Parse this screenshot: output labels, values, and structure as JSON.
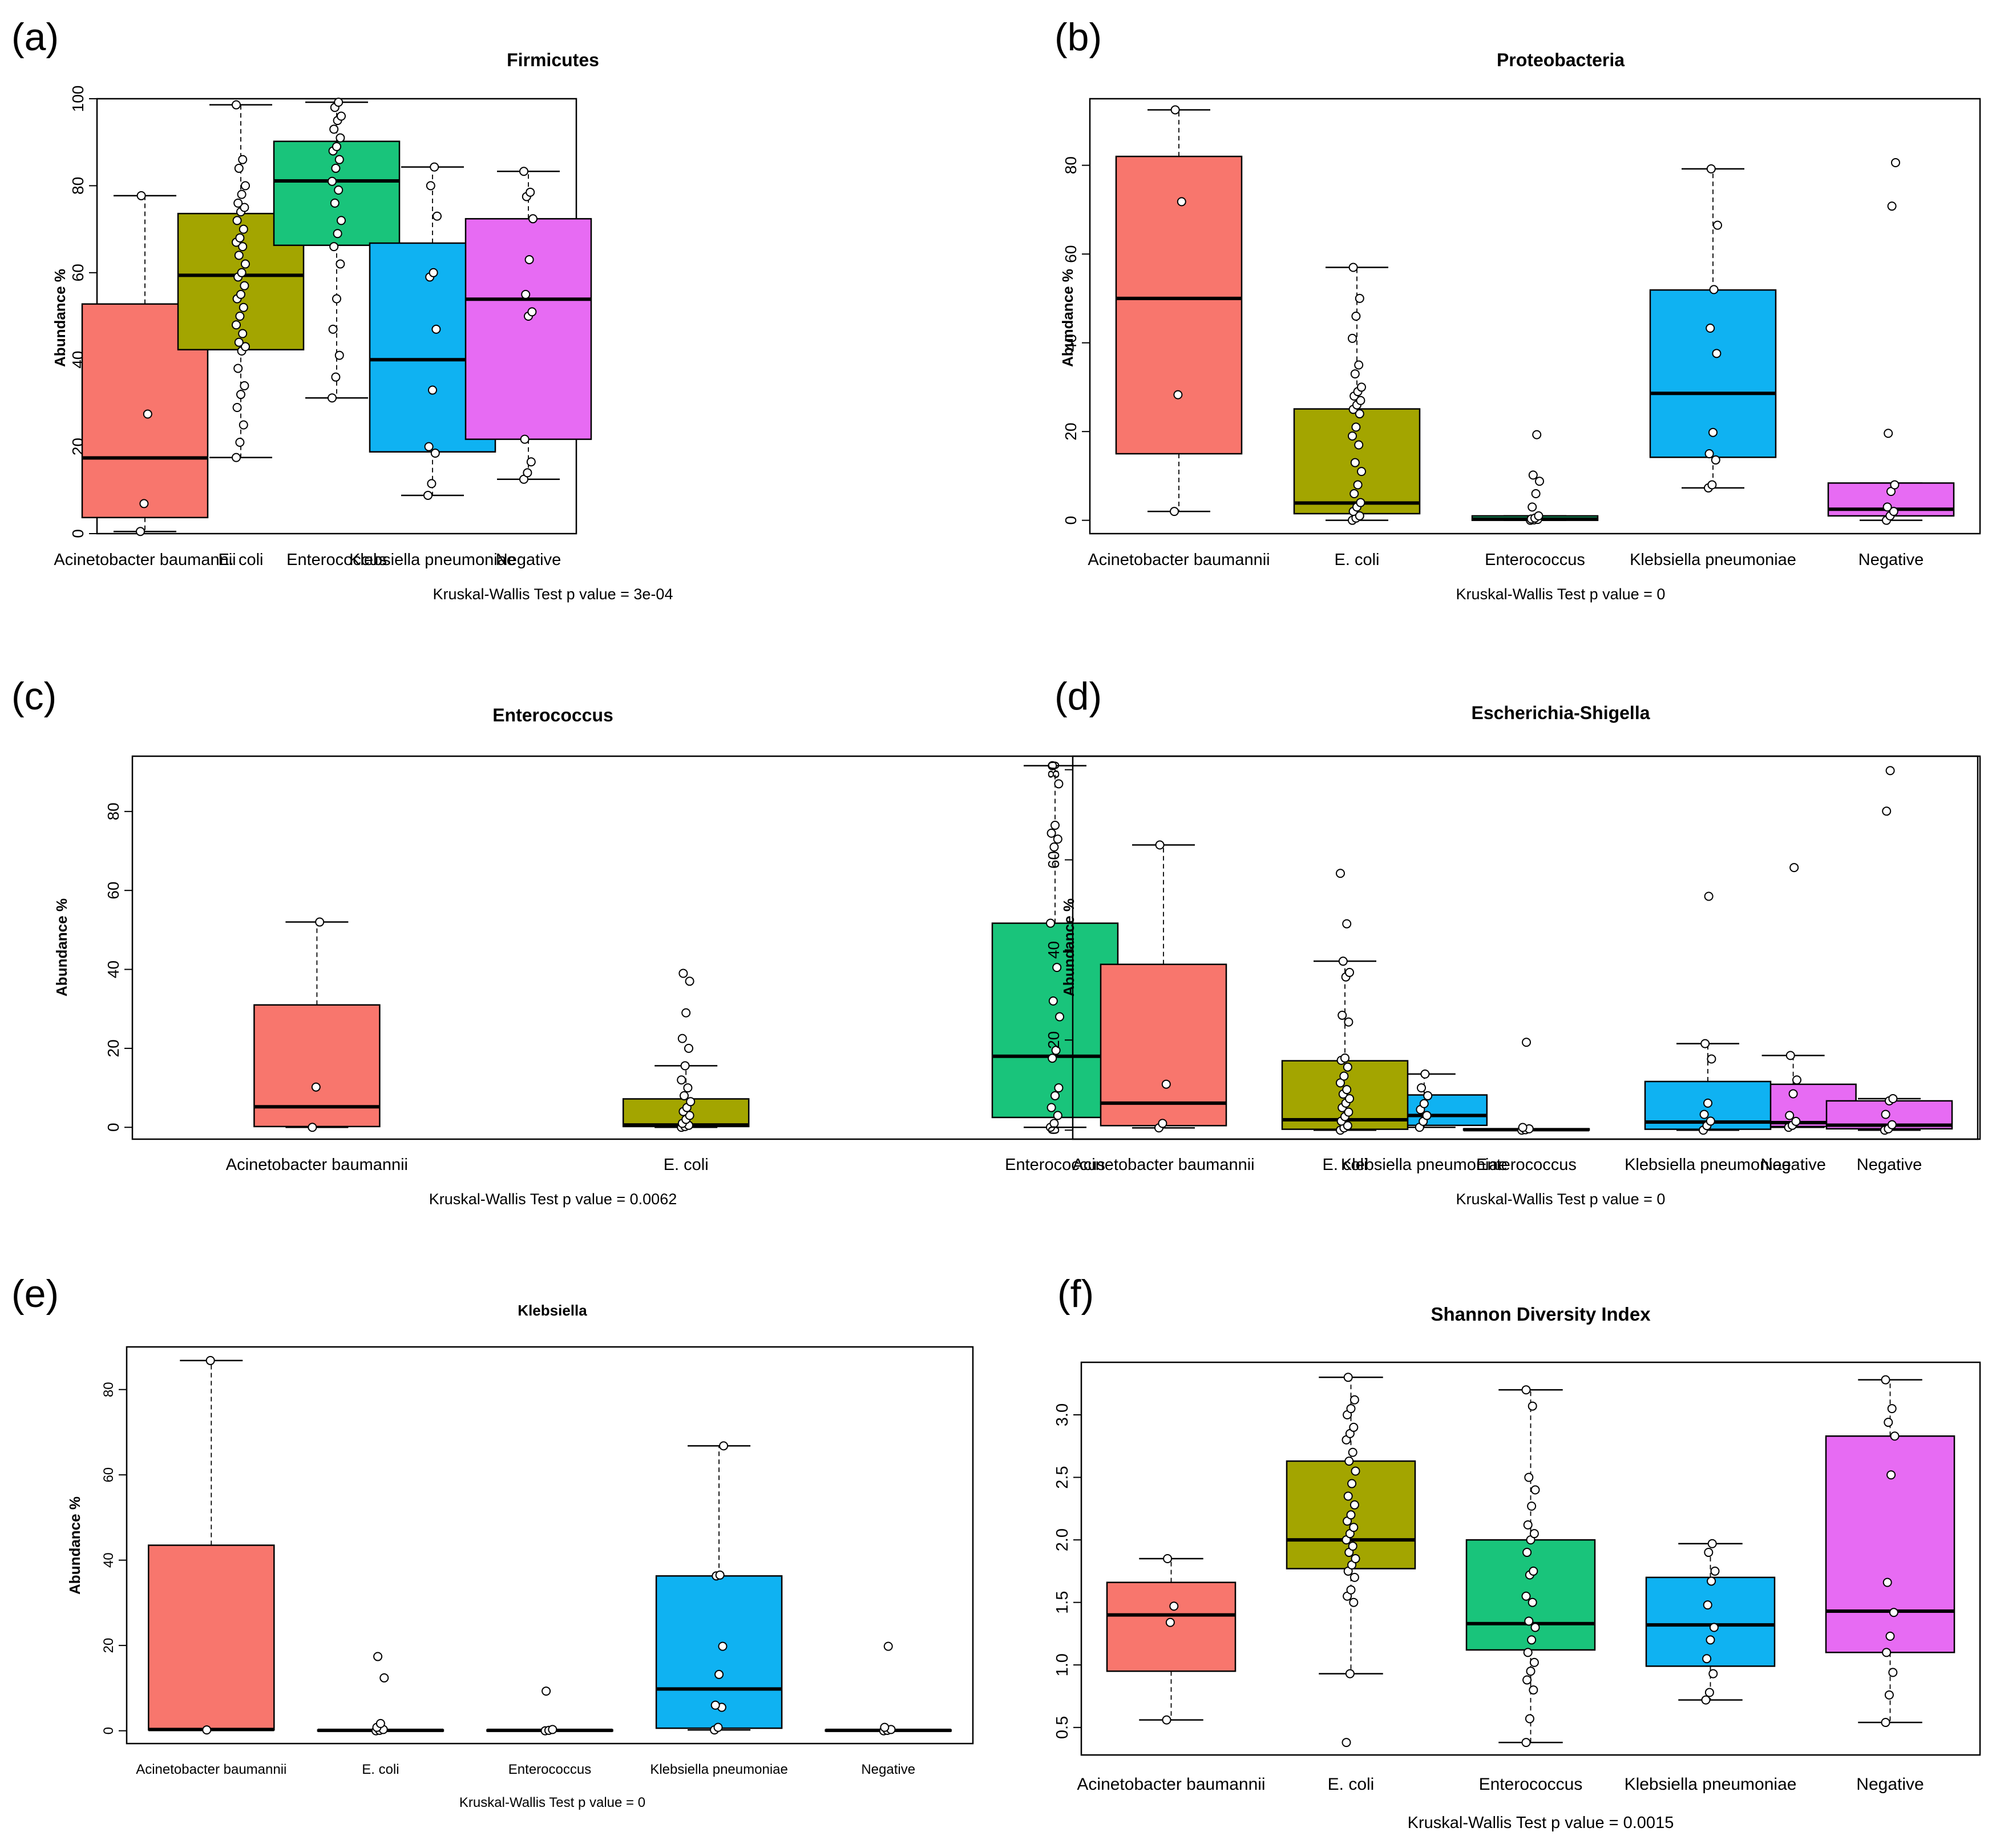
{
  "groups": [
    "Acinetobacter baumannii",
    "E. coli",
    "Enterococcus",
    "Klebsiella pneumoniae",
    "Negative"
  ],
  "colors": {
    "Acinetobacter baumannii": "#F8766D",
    "E. coli": "#A3A500",
    "Enterococcus": "#19C47B",
    "Klebsiella pneumoniae": "#0FB2F2",
    "Negative": "#E76BF3"
  },
  "chart_data": [
    {
      "panel": "(a)",
      "type": "boxplot",
      "title": "Firmicutes",
      "ylabel": "Abundance %",
      "xlabel": "Kruskal-Wallis Test p value = 3e-04",
      "ylim": [
        0,
        100
      ],
      "yticks": [
        0,
        20,
        40,
        60,
        80,
        100
      ],
      "tick_labels": [
        "0",
        "20",
        "40",
        "60",
        "80",
        "100"
      ],
      "boxes": [
        {
          "group": "Acinetobacter baumannii",
          "whisker_low": 0.5,
          "q1": 3.7,
          "median": 17.4,
          "q3": 52.8,
          "whisker_high": 77.7,
          "points": [
            0.5,
            6.9,
            27.5,
            77.7
          ]
        },
        {
          "group": "E. coli",
          "whisker_low": 17.5,
          "q1": 42.3,
          "median": 59.4,
          "q3": 73.6,
          "whisker_high": 98.6,
          "points": [
            17.5,
            21,
            25,
            29,
            32,
            34,
            38,
            42,
            43,
            44,
            46,
            48,
            50,
            52,
            54,
            55,
            57,
            59,
            60,
            62,
            64,
            66,
            67,
            68,
            70,
            72,
            74,
            75,
            76,
            78,
            80,
            84,
            86,
            98.6
          ]
        },
        {
          "group": "Enterococcus",
          "whisker_low": 31.2,
          "q1": 66.3,
          "median": 81.1,
          "q3": 90.2,
          "whisker_high": 99.2,
          "points": [
            31.2,
            36,
            41,
            47,
            54,
            62,
            66,
            69,
            72,
            76,
            79,
            81,
            84,
            86,
            88,
            89,
            91,
            93,
            95,
            96,
            98,
            99.2
          ]
        },
        {
          "group": "Klebsiella pneumoniae",
          "whisker_low": 8.8,
          "q1": 18.8,
          "median": 40.0,
          "q3": 66.8,
          "whisker_high": 84.3,
          "points": [
            8.8,
            11.5,
            18.5,
            20,
            33,
            47,
            59,
            60,
            73,
            80,
            84.3
          ]
        },
        {
          "group": "Negative",
          "whisker_low": 12.5,
          "q1": 21.7,
          "median": 53.9,
          "q3": 72.4,
          "whisker_high": 83.3,
          "points": [
            12.5,
            14,
            16.5,
            21.7,
            50,
            51,
            55,
            63,
            72.4,
            77.5,
            78.5,
            83.3
          ]
        }
      ]
    },
    {
      "panel": "(b)",
      "type": "boxplot",
      "title": "Proteobacteria",
      "ylabel": "Abundance %",
      "xlabel": "Kruskal-Wallis Test p value = 0",
      "ylim": [
        -3,
        95
      ],
      "yticks": [
        0,
        20,
        40,
        60,
        80
      ],
      "tick_labels": [
        "0",
        "20",
        "40",
        "60",
        "80"
      ],
      "boxes": [
        {
          "group": "Acinetobacter baumannii",
          "whisker_low": 2,
          "q1": 15,
          "median": 50,
          "q3": 82,
          "whisker_high": 92.5,
          "points": [
            2,
            28.3,
            71.8,
            92.5
          ]
        },
        {
          "group": "E. coli",
          "whisker_low": 0,
          "q1": 1.5,
          "median": 3.9,
          "q3": 25.1,
          "whisker_high": 57,
          "points": [
            0,
            0.5,
            1,
            2,
            3,
            4,
            6,
            8,
            11,
            13,
            17,
            19,
            21,
            24,
            25,
            26,
            27,
            28,
            29,
            30,
            33,
            35,
            41,
            46,
            50,
            57
          ]
        },
        {
          "group": "Enterococcus",
          "whisker_low": 0,
          "q1": 0,
          "median": 0.3,
          "q3": 1.0,
          "whisker_high": 1.0,
          "points": [
            0,
            0.1,
            0.2,
            0.3,
            0.5,
            1,
            3,
            6,
            8.8,
            10.2,
            19.3
          ]
        },
        {
          "group": "Klebsiella pneumoniae",
          "whisker_low": 7.3,
          "q1": 14.2,
          "median": 28.6,
          "q3": 51.9,
          "whisker_high": 79.2,
          "points": [
            7.3,
            8,
            13.6,
            15,
            19.8,
            37.6,
            43.3,
            52,
            66.5,
            79.2
          ]
        },
        {
          "group": "Negative",
          "whisker_low": 0,
          "q1": 1,
          "median": 2.5,
          "q3": 8.4,
          "whisker_high": 8.4,
          "points": [
            0,
            1,
            2,
            3,
            6.5,
            8,
            19.6,
            70.8,
            80.6
          ]
        }
      ]
    },
    {
      "panel": "(c)",
      "type": "boxplot",
      "title": "Enterococcus",
      "ylabel": "Abundance %",
      "xlabel": "Kruskal-Wallis Test p value = 0.0062",
      "ylim": [
        -3,
        94
      ],
      "yticks": [
        0,
        20,
        40,
        60,
        80
      ],
      "tick_labels": [
        "0",
        "20",
        "40",
        "60",
        "80"
      ],
      "boxes": [
        {
          "group": "Acinetobacter baumannii",
          "whisker_low": 0,
          "q1": 0.2,
          "median": 5.2,
          "q3": 31,
          "whisker_high": 52,
          "points": [
            0,
            10.2,
            52
          ]
        },
        {
          "group": "E. coli",
          "whisker_low": 0,
          "q1": 0.2,
          "median": 0.6,
          "q3": 7.2,
          "whisker_high": 15.6,
          "points": [
            0,
            0.2,
            0.5,
            1,
            2,
            3,
            4,
            5,
            6.5,
            8,
            10,
            12,
            15.6,
            20,
            22.5,
            29,
            37,
            39
          ]
        },
        {
          "group": "Enterococcus",
          "whisker_low": 0,
          "q1": 2.5,
          "median": 18,
          "q3": 51.7,
          "whisker_high": 91.6,
          "points": [
            0,
            1,
            3,
            5,
            8,
            10,
            17.5,
            19.5,
            28,
            32,
            40.5,
            51.7,
            71,
            73,
            74.5,
            76.5,
            87,
            91.6
          ]
        },
        {
          "group": "Klebsiella pneumoniae",
          "whisker_low": 0,
          "q1": 0.5,
          "median": 3,
          "q3": 8.2,
          "whisker_high": 13.5,
          "points": [
            0,
            1.5,
            3,
            4.5,
            6,
            8,
            10,
            13.5
          ]
        },
        {
          "group": "Negative",
          "whisker_low": 0,
          "q1": 0.2,
          "median": 1.2,
          "q3": 10.9,
          "whisker_high": 18.2,
          "points": [
            0,
            0.5,
            1.5,
            3,
            8.5,
            12,
            18.2,
            65.8
          ]
        }
      ]
    },
    {
      "panel": "(d)",
      "type": "boxplot",
      "title": "Escherichia-Shigella",
      "ylabel": "Abundance %",
      "xlabel": "Kruskal-Wallis Test p value = 0",
      "ylim": [
        -2,
        83
      ],
      "yticks": [
        0,
        20,
        40,
        60,
        80
      ],
      "tick_labels": [
        "0",
        "20",
        "40",
        "60",
        "80"
      ],
      "boxes": [
        {
          "group": "Acinetobacter baumannii",
          "whisker_low": 0.5,
          "q1": 1,
          "median": 6,
          "q3": 36.8,
          "whisker_high": 63.3,
          "points": [
            0.5,
            1.5,
            10.2,
            63.3
          ]
        },
        {
          "group": "E. coli",
          "whisker_low": 0,
          "q1": 0.2,
          "median": 2.3,
          "q3": 15.4,
          "whisker_high": 37.5,
          "points": [
            0,
            0.5,
            1,
            2,
            3,
            4,
            5,
            6,
            7,
            8,
            9,
            10.5,
            12,
            14,
            15.5,
            16,
            24,
            25.5,
            34,
            35,
            37.5,
            45.8,
            57
          ]
        },
        {
          "group": "Enterococcus",
          "whisker_low": 0,
          "q1": 0,
          "median": 0.1,
          "q3": 0.3,
          "whisker_high": 0.3,
          "points": [
            0,
            0.1,
            0.3,
            0.6,
            19.5
          ]
        },
        {
          "group": "Klebsiella pneumoniae",
          "whisker_low": 0,
          "q1": 0.2,
          "median": 1.8,
          "q3": 10.8,
          "whisker_high": 19.2,
          "points": [
            0,
            1,
            2,
            3.5,
            6,
            15.8,
            19.2,
            51.9
          ]
        },
        {
          "group": "Negative",
          "whisker_low": 0,
          "q1": 0.3,
          "median": 1.1,
          "q3": 6.5,
          "whisker_high": 7.0,
          "points": [
            0,
            0.3,
            1.2,
            3.5,
            6.5,
            7,
            70.8,
            79.8
          ]
        }
      ]
    },
    {
      "panel": "(e)",
      "type": "boxplot",
      "title": "Klebsiella",
      "ylabel": "Abundance %",
      "xlabel": "Kruskal-Wallis Test p value = 0",
      "ylim": [
        -3,
        90
      ],
      "yticks": [
        0,
        20,
        40,
        60,
        80
      ],
      "tick_labels": [
        "0",
        "20",
        "40",
        "60",
        "80"
      ],
      "boxes": [
        {
          "group": "Acinetobacter baumannii",
          "whisker_low": 0.2,
          "q1": 0.2,
          "median": 0.3,
          "q3": 43.5,
          "whisker_high": 86.8,
          "points": [
            0.2,
            86.8
          ]
        },
        {
          "group": "E. coli",
          "whisker_low": 0,
          "q1": 0,
          "median": 0.1,
          "q3": 0.2,
          "whisker_high": 0.3,
          "points": [
            0,
            0.1,
            0.3,
            0.8,
            1.7,
            12.4,
            17.4
          ]
        },
        {
          "group": "Enterococcus",
          "whisker_low": 0,
          "q1": 0,
          "median": 0.1,
          "q3": 0.2,
          "whisker_high": 0.3,
          "points": [
            0,
            0.1,
            0.3,
            9.3
          ]
        },
        {
          "group": "Klebsiella pneumoniae",
          "whisker_low": 0.2,
          "q1": 0.6,
          "median": 9.8,
          "q3": 36.3,
          "whisker_high": 66.8,
          "points": [
            0.2,
            0.8,
            5.5,
            6,
            13.2,
            19.8,
            36.3,
            36.5,
            66.8
          ]
        },
        {
          "group": "Negative",
          "whisker_low": 0,
          "q1": 0,
          "median": 0.1,
          "q3": 0.2,
          "whisker_high": 0.3,
          "points": [
            0,
            0.1,
            0.3,
            0.8,
            19.8
          ]
        }
      ]
    },
    {
      "panel": "(f)",
      "type": "boxplot",
      "title": "Shannon Diversity Index",
      "ylabel": "",
      "xlabel": "Kruskal-Wallis Test p value = 0.0015",
      "ylim": [
        0.28,
        3.42
      ],
      "yticks": [
        0.5,
        1.0,
        1.5,
        2.0,
        2.5,
        3.0
      ],
      "tick_labels": [
        "0.5",
        "1.0",
        "1.5",
        "2.0",
        "2.5",
        "3.0"
      ],
      "boxes": [
        {
          "group": "Acinetobacter baumannii",
          "whisker_low": 0.56,
          "q1": 0.95,
          "median": 1.4,
          "q3": 1.66,
          "whisker_high": 1.85,
          "points": [
            0.56,
            1.34,
            1.47,
            1.85
          ]
        },
        {
          "group": "E. coli",
          "whisker_low": 0.93,
          "q1": 1.77,
          "median": 2.0,
          "q3": 2.63,
          "whisker_high": 3.3,
          "points": [
            0.38,
            0.93,
            1.5,
            1.55,
            1.6,
            1.7,
            1.75,
            1.8,
            1.85,
            1.9,
            1.95,
            2.0,
            2.05,
            2.1,
            2.15,
            2.2,
            2.28,
            2.35,
            2.45,
            2.55,
            2.63,
            2.7,
            2.8,
            2.85,
            2.9,
            3.0,
            3.05,
            3.12,
            3.3
          ]
        },
        {
          "group": "Enterococcus",
          "whisker_low": 0.38,
          "q1": 1.12,
          "median": 1.33,
          "q3": 2.0,
          "whisker_high": 3.2,
          "points": [
            0.38,
            0.57,
            0.8,
            0.88,
            0.95,
            1.02,
            1.1,
            1.2,
            1.3,
            1.35,
            1.5,
            1.55,
            1.72,
            1.75,
            1.9,
            2.0,
            2.05,
            2.12,
            2.27,
            2.4,
            2.5,
            3.07,
            3.2
          ]
        },
        {
          "group": "Klebsiella pneumoniae",
          "whisker_low": 0.72,
          "q1": 0.99,
          "median": 1.32,
          "q3": 1.7,
          "whisker_high": 1.97,
          "points": [
            0.72,
            0.78,
            0.93,
            1.05,
            1.2,
            1.3,
            1.48,
            1.67,
            1.75,
            1.9,
            1.97
          ]
        },
        {
          "group": "Negative",
          "whisker_low": 0.54,
          "q1": 1.1,
          "median": 1.43,
          "q3": 2.83,
          "whisker_high": 3.28,
          "points": [
            0.54,
            0.76,
            0.94,
            1.1,
            1.23,
            1.42,
            1.66,
            2.52,
            2.83,
            2.94,
            3.05,
            3.28
          ]
        }
      ]
    }
  ]
}
